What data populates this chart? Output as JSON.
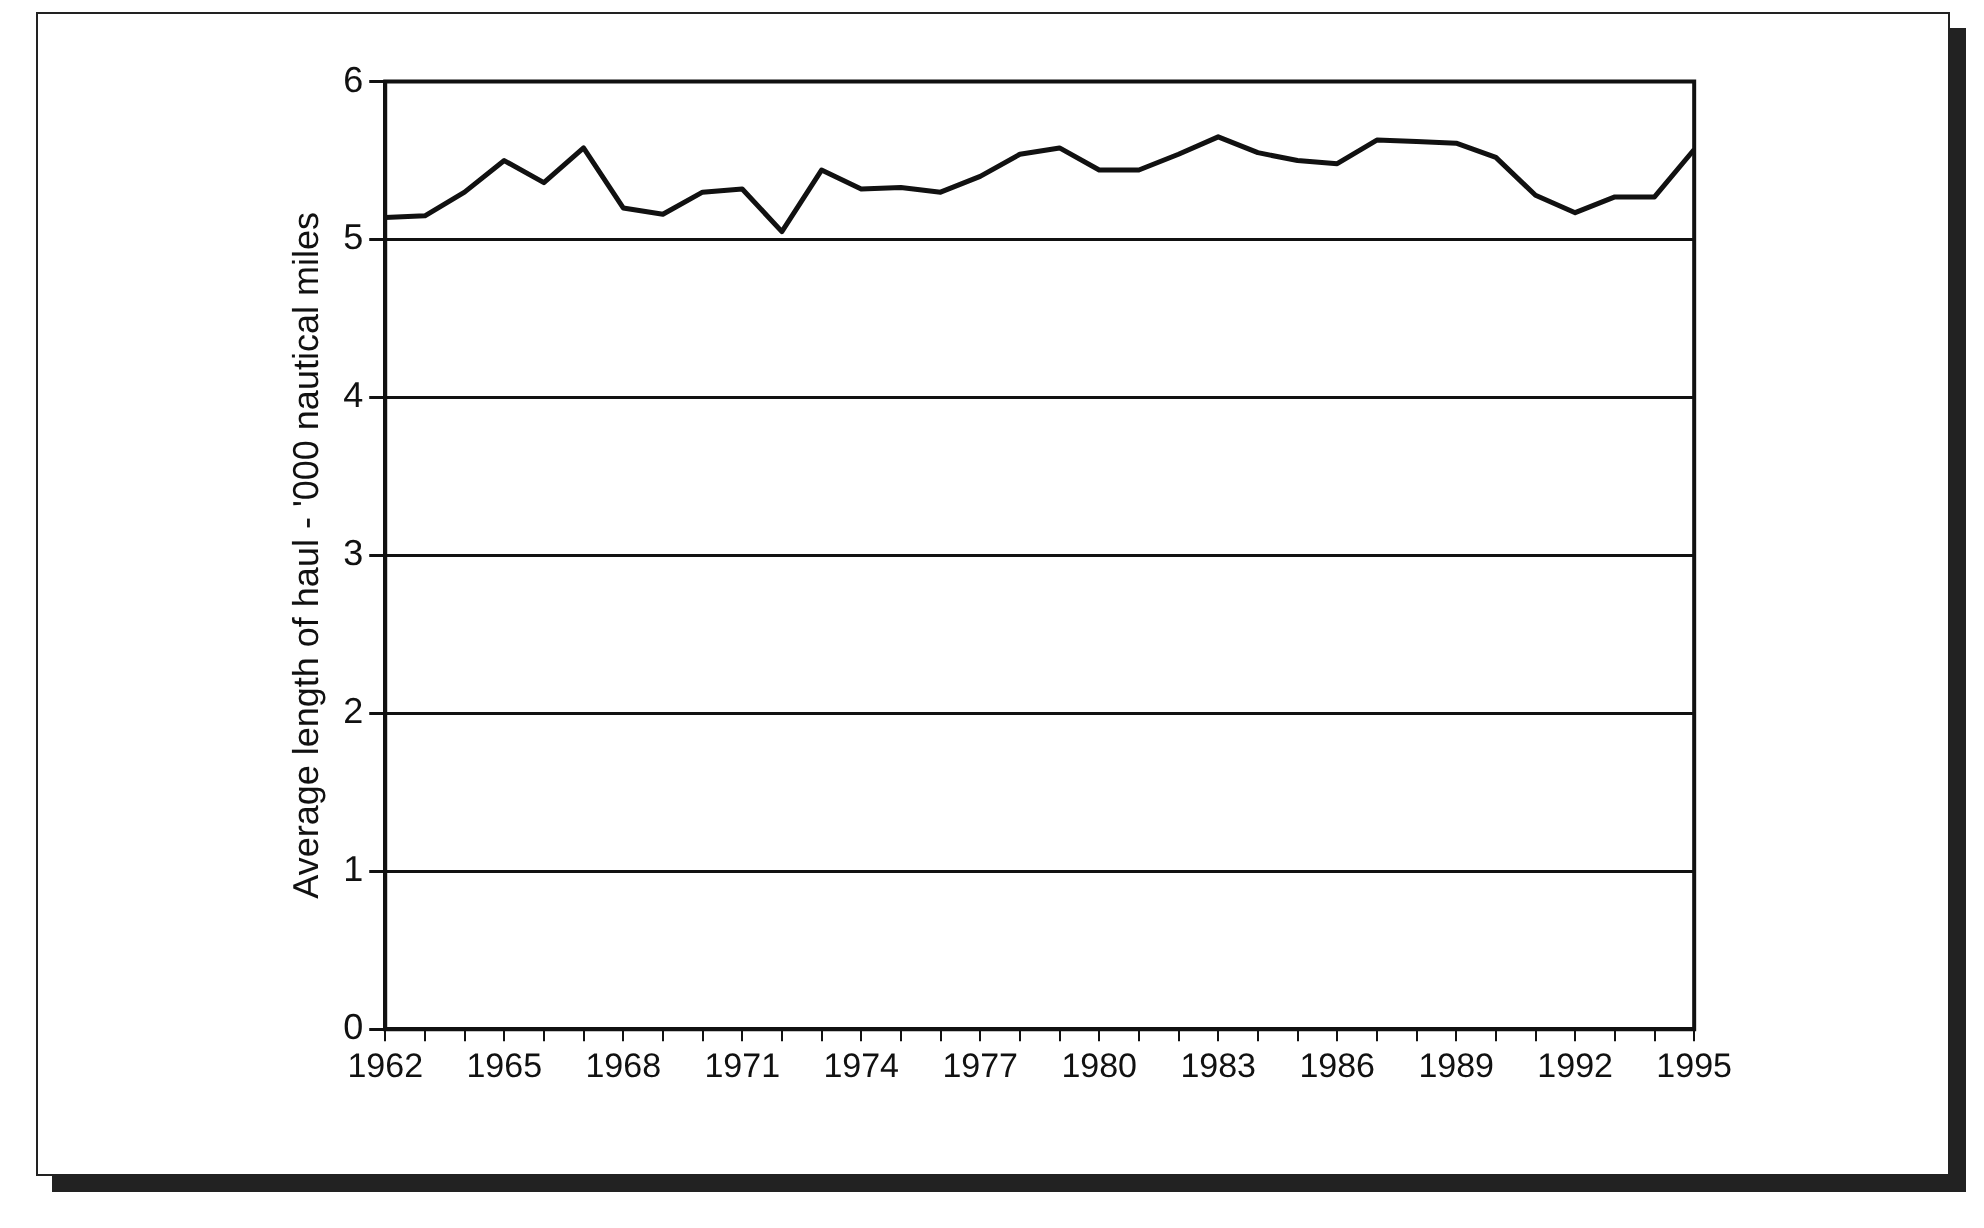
{
  "chart_data": {
    "type": "line",
    "ylabel": "Average length of haul - '000 nautical miles",
    "categories": [
      "1962",
      null,
      null,
      "1965",
      null,
      null,
      "1968",
      null,
      null,
      "1971",
      null,
      null,
      "1974",
      null,
      null,
      "1977",
      null,
      null,
      "1980",
      null,
      null,
      "1983",
      null,
      null,
      "1986",
      null,
      null,
      "1989",
      null,
      null,
      "1992",
      null,
      null,
      "1995"
    ],
    "series": [
      {
        "color": "#111111",
        "values": [
          5.14,
          5.15,
          5.3,
          5.5,
          5.36,
          5.58,
          5.2,
          5.16,
          5.3,
          5.32,
          5.05,
          5.44,
          5.32,
          5.33,
          5.3,
          5.4,
          5.54,
          5.58,
          5.44,
          5.44,
          5.54,
          5.65,
          5.55,
          5.5,
          5.48,
          5.63,
          5.62,
          5.61,
          5.52,
          5.28,
          5.17,
          5.27,
          5.27,
          5.57
        ]
      }
    ],
    "ylim": [
      0,
      6
    ],
    "yticks": [
      0,
      1,
      2,
      3,
      4,
      5,
      6
    ],
    "grid": "y",
    "legend": false,
    "marker": "none",
    "line_style": "solid"
  }
}
